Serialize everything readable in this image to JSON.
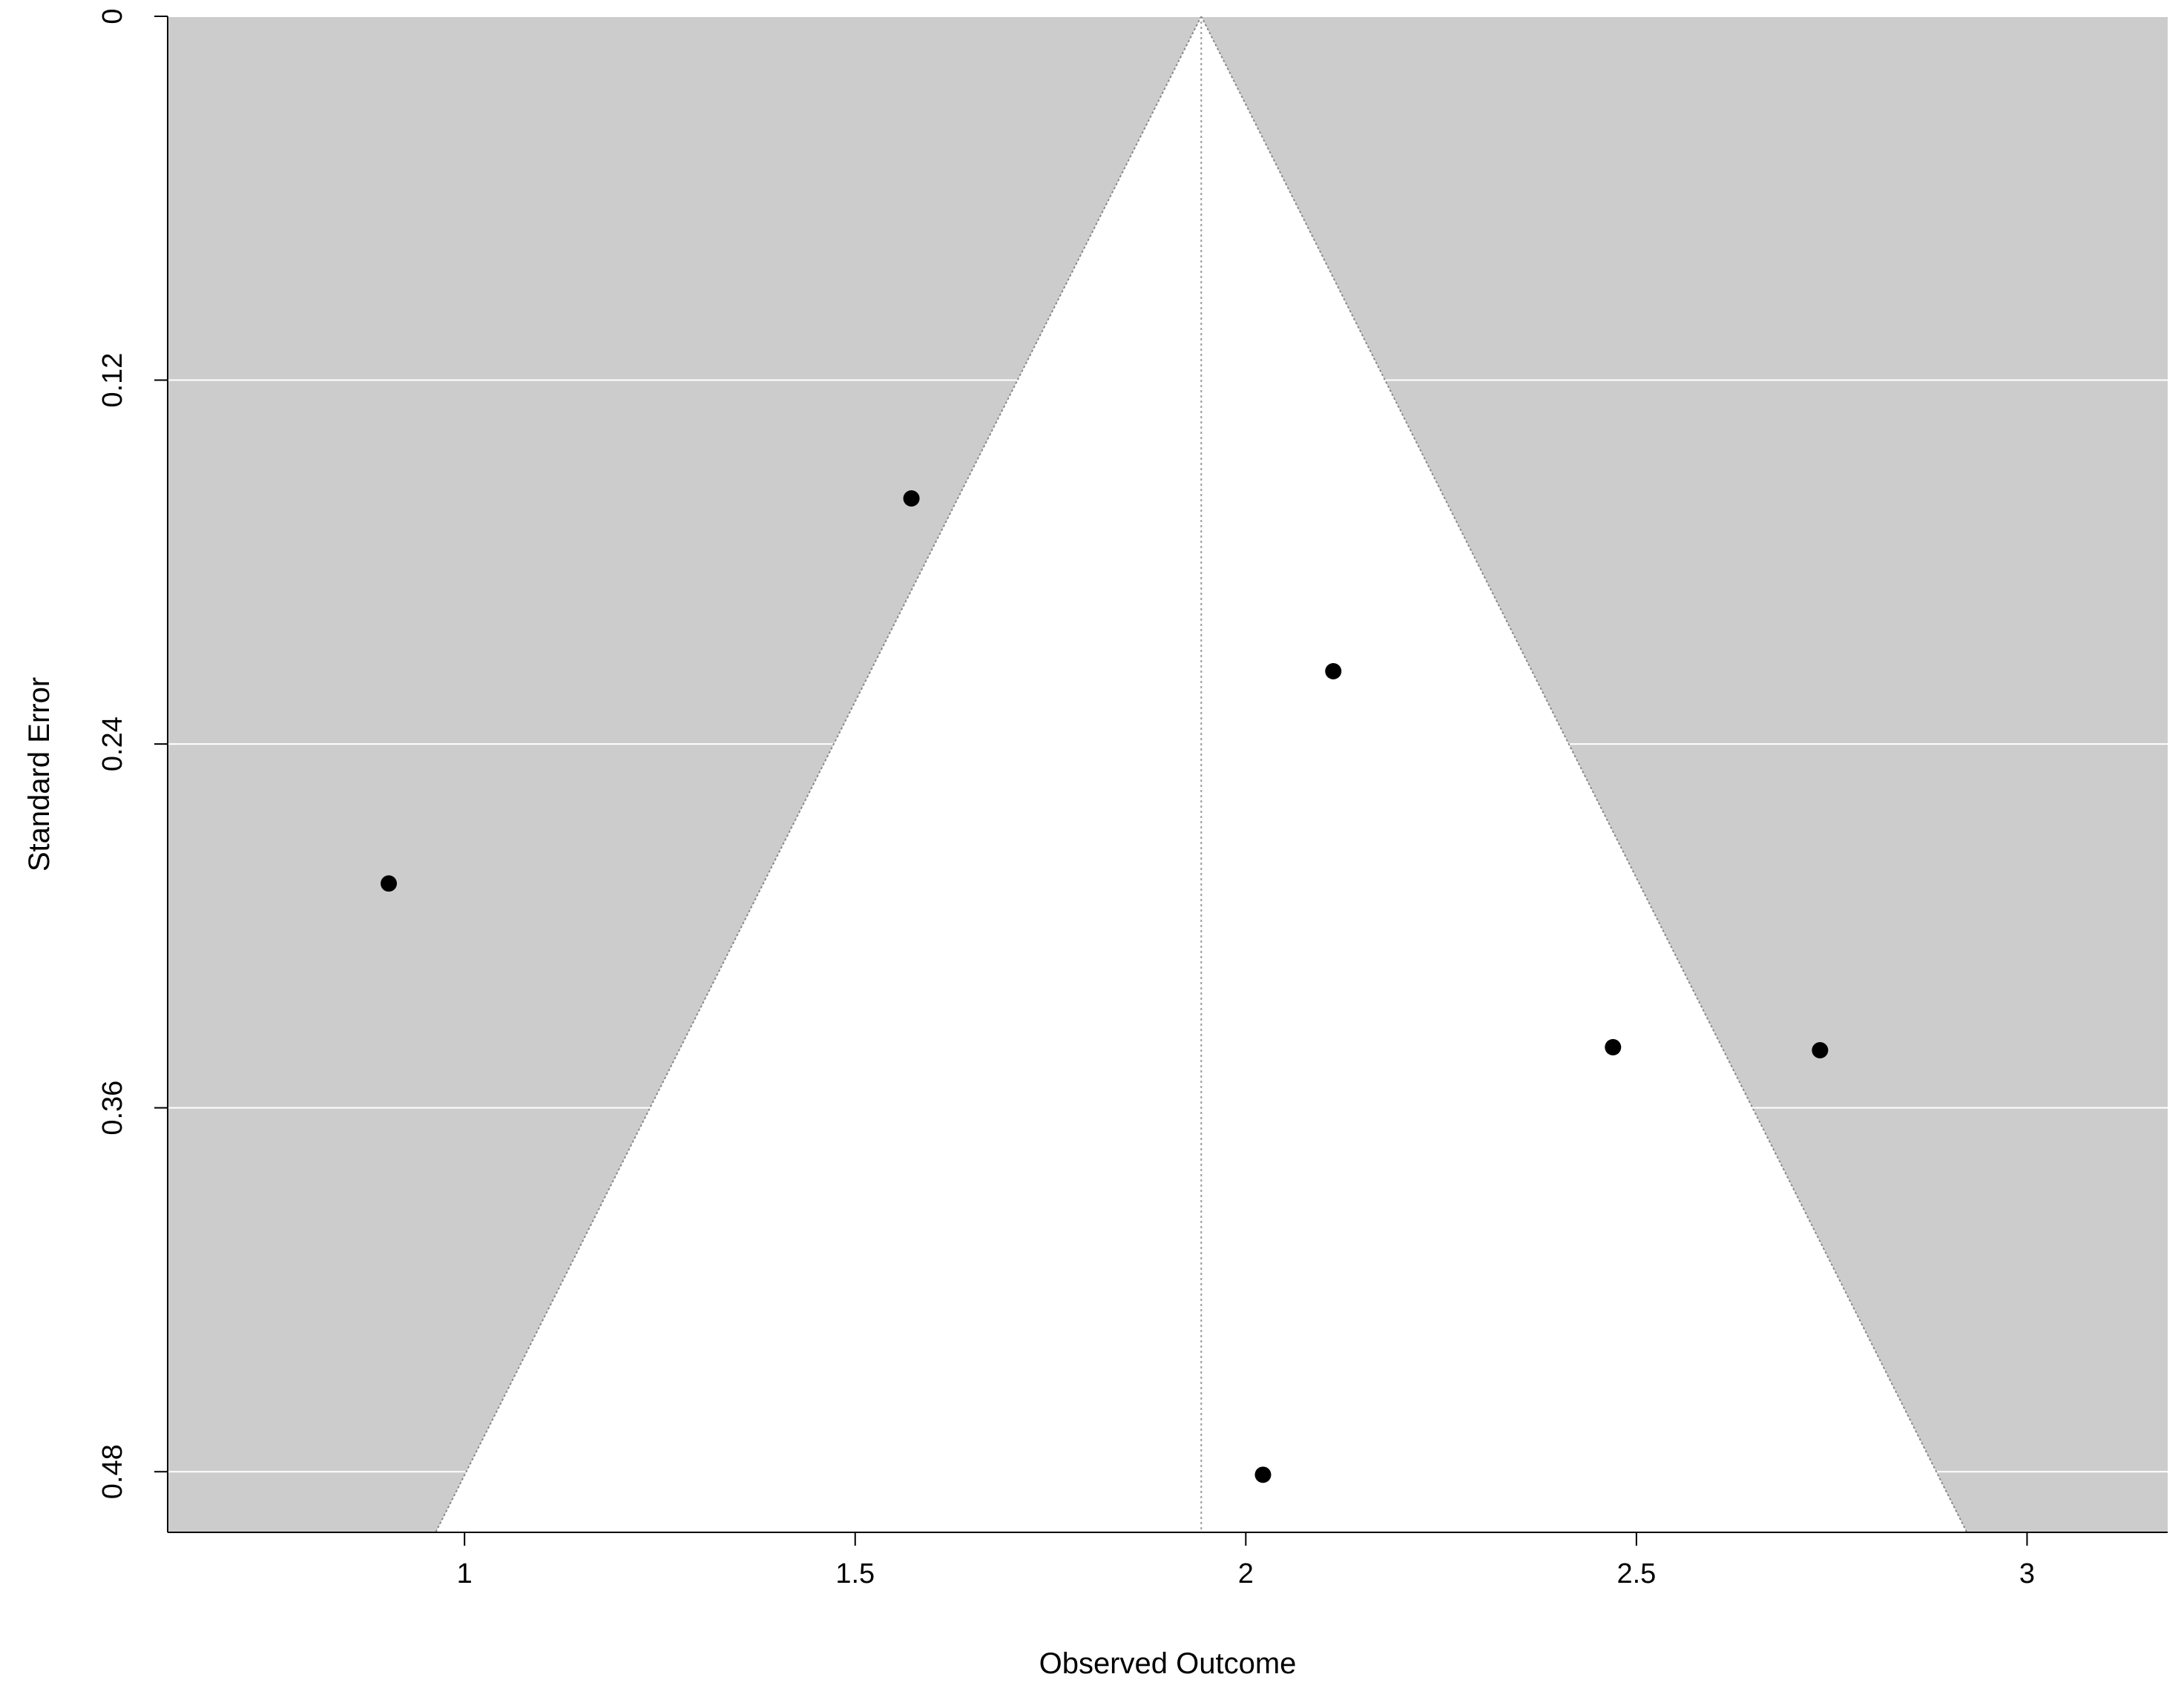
{
  "chart_data": {
    "type": "scatter",
    "subtype": "funnel-plot",
    "xlabel": "Observed Outcome",
    "ylabel": "Standard Error",
    "xlim": [
      0.62,
      3.18
    ],
    "ylim": [
      0.5,
      0
    ],
    "y_reversed": true,
    "x_ticks": [
      1,
      1.5,
      2,
      2.5,
      3
    ],
    "x_tick_labels": [
      "1",
      "1.5",
      "2",
      "2.5",
      "3"
    ],
    "y_ticks": [
      0,
      0.12,
      0.24,
      0.36,
      0.48
    ],
    "y_tick_labels": [
      "0",
      "0.12",
      "0.24",
      "0.36",
      "0.48"
    ],
    "grid": "horizontal",
    "funnel": {
      "center": 1.943,
      "z": 1.96,
      "region_color": "#ffffff",
      "background_color": "#cccccc",
      "grid_color": "#ffffff",
      "reference_line": "dotted"
    },
    "points": [
      {
        "x": 0.903,
        "y": 0.286
      },
      {
        "x": 1.572,
        "y": 0.159
      },
      {
        "x": 2.112,
        "y": 0.216
      },
      {
        "x": 2.022,
        "y": 0.481
      },
      {
        "x": 2.47,
        "y": 0.34
      },
      {
        "x": 2.735,
        "y": 0.341
      }
    ],
    "point_color": "#000000"
  }
}
